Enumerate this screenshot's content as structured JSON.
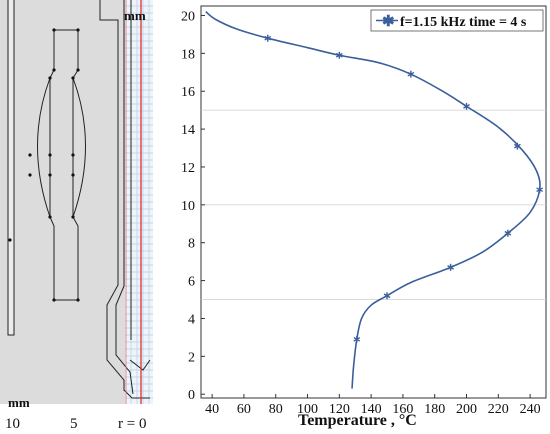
{
  "left_panel": {
    "top_unit": "mm",
    "bottom_unit": "mm",
    "r_ticks": [
      "10",
      "5",
      "r = 0"
    ]
  },
  "chart_data": {
    "type": "line",
    "title": "",
    "xlabel": "Temperature , °C",
    "ylabel": "",
    "xlim": [
      33,
      250
    ],
    "ylim": [
      -0.2,
      20.5
    ],
    "xticks": [
      40,
      60,
      80,
      100,
      120,
      140,
      160,
      180,
      200,
      220,
      240
    ],
    "yticks": [
      0,
      2,
      4,
      6,
      8,
      10,
      12,
      14,
      16,
      18,
      20
    ],
    "legend": {
      "position": "top-right",
      "marker": "star"
    },
    "series": [
      {
        "name": "f=1.15 kHz time = 4 s",
        "color": "#3a5f9a",
        "points": [
          [
            128,
            0.3
          ],
          [
            129,
            1.5
          ],
          [
            131,
            2.9
          ],
          [
            134,
            4.0
          ],
          [
            140,
            4.7
          ],
          [
            150,
            5.2
          ],
          [
            165,
            5.9
          ],
          [
            190,
            6.7
          ],
          [
            210,
            7.5
          ],
          [
            226,
            8.5
          ],
          [
            240,
            9.6
          ],
          [
            246,
            10.8
          ],
          [
            244,
            11.8
          ],
          [
            235,
            12.9
          ],
          [
            220,
            14.1
          ],
          [
            200,
            15.2
          ],
          [
            185,
            16.0
          ],
          [
            165,
            16.9
          ],
          [
            145,
            17.5
          ],
          [
            120,
            17.9
          ],
          [
            100,
            18.3
          ],
          [
            75,
            18.8
          ],
          [
            55,
            19.3
          ],
          [
            42,
            19.8
          ],
          [
            36,
            20.2
          ]
        ],
        "markers": [
          [
            131,
            2.9
          ],
          [
            150,
            5.2
          ],
          [
            190,
            6.7
          ],
          [
            226,
            8.5
          ],
          [
            246,
            10.8
          ],
          [
            232,
            13.1
          ],
          [
            200,
            15.2
          ],
          [
            165,
            16.9
          ],
          [
            120,
            17.9
          ],
          [
            75,
            18.8
          ]
        ]
      }
    ]
  }
}
